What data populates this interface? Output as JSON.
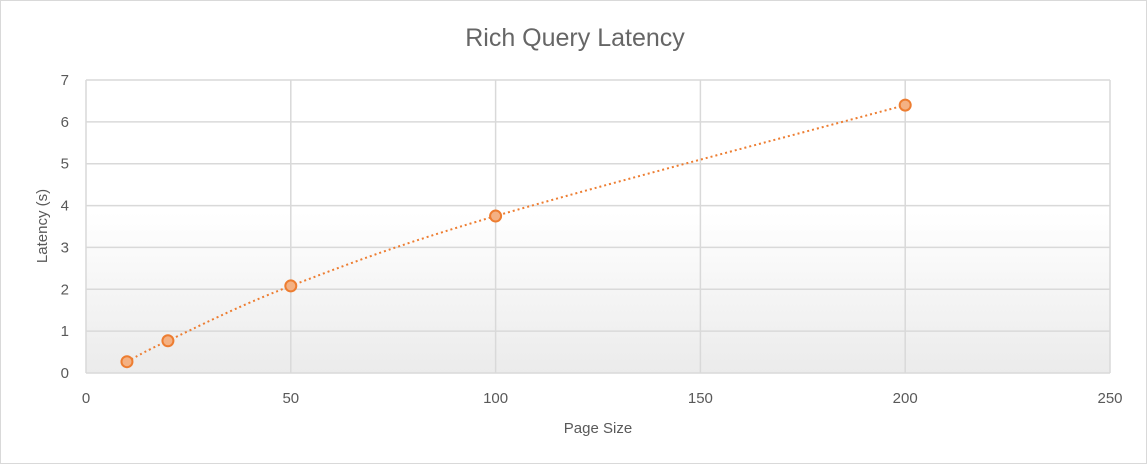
{
  "chart_data": {
    "type": "scatter",
    "title": "Rich Query Latency",
    "xlabel": "Page Size",
    "ylabel": "Latency (s)",
    "xlim": [
      0,
      250
    ],
    "ylim": [
      0,
      7
    ],
    "x_ticks": [
      0,
      50,
      100,
      150,
      200,
      250
    ],
    "y_ticks": [
      0,
      1,
      2,
      3,
      4,
      5,
      6,
      7
    ],
    "grid": true,
    "legend": "none",
    "trendline": "dotted curve through points",
    "series": [
      {
        "color": "#ED7D31",
        "points": [
          {
            "x": 10,
            "y": 0.27
          },
          {
            "x": 20,
            "y": 0.77
          },
          {
            "x": 50,
            "y": 2.08
          },
          {
            "x": 100,
            "y": 3.75
          },
          {
            "x": 200,
            "y": 6.4
          }
        ]
      }
    ]
  }
}
